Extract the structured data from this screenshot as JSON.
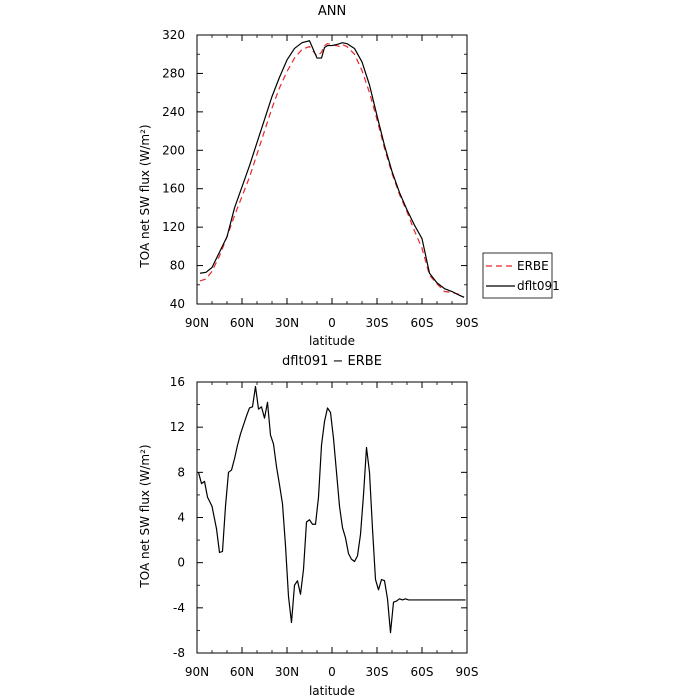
{
  "chart_data": [
    {
      "type": "line",
      "title": "ANN",
      "xlabel": "latitude",
      "ylabel": "TOA net SW flux (W/m²)",
      "xlim": [
        90,
        -90
      ],
      "ylim": [
        40,
        320
      ],
      "x_ticks": [
        90,
        60,
        30,
        0,
        -30,
        -60,
        -90
      ],
      "x_tick_labels": [
        "90N",
        "60N",
        "30N",
        "0",
        "30S",
        "60S",
        "90S"
      ],
      "y_ticks": [
        40,
        80,
        120,
        160,
        200,
        240,
        280,
        320
      ],
      "y_tick_labels": [
        "40",
        "80",
        "120",
        "160",
        "200",
        "240",
        "280",
        "320"
      ],
      "legend_position": "right",
      "legend": [
        "ERBE",
        "dflt091"
      ],
      "series": [
        {
          "name": "ERBE",
          "color": "#e8262a",
          "dash": "dashed",
          "x": [
            88,
            84,
            80,
            75,
            70,
            65,
            60,
            55,
            50,
            45,
            40,
            35,
            30,
            25,
            20,
            15,
            10,
            7,
            5,
            3,
            0,
            -3,
            -5,
            -7,
            -10,
            -15,
            -20,
            -25,
            -30,
            -35,
            -40,
            -45,
            -50,
            -55,
            -60,
            -65,
            -70,
            -75,
            -80,
            -85,
            -88
          ],
          "y": [
            64,
            66,
            74,
            90,
            110,
            132,
            152,
            172,
            196,
            220,
            244,
            265,
            282,
            296,
            305,
            308,
            298,
            302,
            309,
            311,
            310,
            309,
            308,
            310,
            308,
            300,
            283,
            260,
            232,
            202,
            176,
            154,
            136,
            116,
            98,
            70,
            61,
            53,
            52,
            50,
            47
          ]
        },
        {
          "name": "dflt091",
          "color": "#000000",
          "dash": "solid",
          "x": [
            88,
            84,
            80,
            75,
            70,
            65,
            60,
            55,
            50,
            45,
            40,
            35,
            30,
            25,
            20,
            15,
            10,
            7,
            5,
            3,
            0,
            -3,
            -5,
            -7,
            -10,
            -15,
            -20,
            -25,
            -30,
            -35,
            -40,
            -45,
            -50,
            -55,
            -60,
            -65,
            -70,
            -75,
            -80,
            -85,
            -88
          ],
          "y": [
            72,
            73,
            78,
            94,
            110,
            140,
            162,
            184,
            208,
            232,
            256,
            276,
            294,
            306,
            312,
            314,
            296,
            296,
            307,
            309,
            309,
            310,
            311,
            312,
            311,
            306,
            292,
            268,
            236,
            205,
            178,
            156,
            138,
            122,
            108,
            72,
            62,
            56,
            53,
            49,
            47
          ]
        }
      ]
    },
    {
      "type": "line",
      "title": "dflt091 − ERBE",
      "xlabel": "latitude",
      "ylabel": "TOA net SW flux (W/m²)",
      "xlim": [
        90,
        -90
      ],
      "ylim": [
        -8,
        16
      ],
      "x_ticks": [
        90,
        60,
        30,
        0,
        -30,
        -60,
        -90
      ],
      "x_tick_labels": [
        "90N",
        "60N",
        "30N",
        "0",
        "30S",
        "60S",
        "90S"
      ],
      "y_ticks": [
        -8,
        -4,
        0,
        4,
        8,
        12,
        16
      ],
      "y_tick_labels": [
        "-8",
        "-4",
        "0",
        "4",
        "8",
        "12",
        "16"
      ],
      "series": [
        {
          "color": "#000000",
          "dash": "solid",
          "x": [
            89,
            87,
            85,
            83,
            80,
            77,
            75,
            73,
            71,
            69,
            67,
            65,
            63,
            61,
            59,
            57,
            55,
            53,
            51,
            49,
            47,
            45,
            43,
            41,
            39,
            37,
            35,
            33,
            31,
            29,
            27,
            25,
            23,
            21,
            19,
            17,
            15,
            13,
            11,
            9,
            7,
            5,
            3,
            1,
            -1,
            -3,
            -5,
            -7,
            -9,
            -11,
            -13,
            -15,
            -17,
            -19,
            -21,
            -23,
            -25,
            -27,
            -29,
            -31,
            -33,
            -35,
            -37,
            -39,
            -41,
            -43,
            -45,
            -47,
            -49,
            -51,
            -53,
            -55,
            -57,
            -59,
            -61,
            -63,
            -65,
            -67,
            -69,
            -71,
            -73,
            -75,
            -77,
            -79,
            -81,
            -83,
            -85,
            -87,
            -89
          ],
          "y": [
            8,
            7.0,
            7.2,
            5.8,
            5.0,
            3.0,
            0.9,
            1.0,
            5.0,
            8.0,
            8.2,
            9.2,
            10.4,
            11.4,
            12.2,
            13.0,
            13.7,
            13.8,
            15.6,
            13.6,
            13.8,
            12.8,
            14.2,
            11.3,
            10.5,
            8.5,
            6.9,
            5.2,
            1.5,
            -3.0,
            -5.3,
            -2.0,
            -1.6,
            -2.8,
            -0.6,
            3.6,
            3.8,
            3.4,
            3.4,
            5.8,
            10.4,
            12.5,
            13.7,
            13.3,
            11.0,
            8.0,
            5.0,
            3.1,
            2.2,
            0.8,
            0.3,
            0.1,
            0.6,
            2.5,
            6.0,
            10.2,
            8.0,
            3.0,
            -1.5,
            -2.4,
            -1.5,
            -1.6,
            -3.2,
            -6.2,
            -3.5,
            -3.4,
            -3.2,
            -3.3,
            -3.2,
            -3.3,
            -3.3,
            -3.3,
            -3.3,
            -3.3,
            -3.3,
            -3.3,
            -3.3,
            -3.3,
            -3.3,
            -3.3,
            -3.3,
            -3.3,
            -3.3,
            -3.3,
            -3.3,
            -3.3,
            -3.3,
            -3.3,
            -3.3
          ]
        }
      ]
    }
  ]
}
